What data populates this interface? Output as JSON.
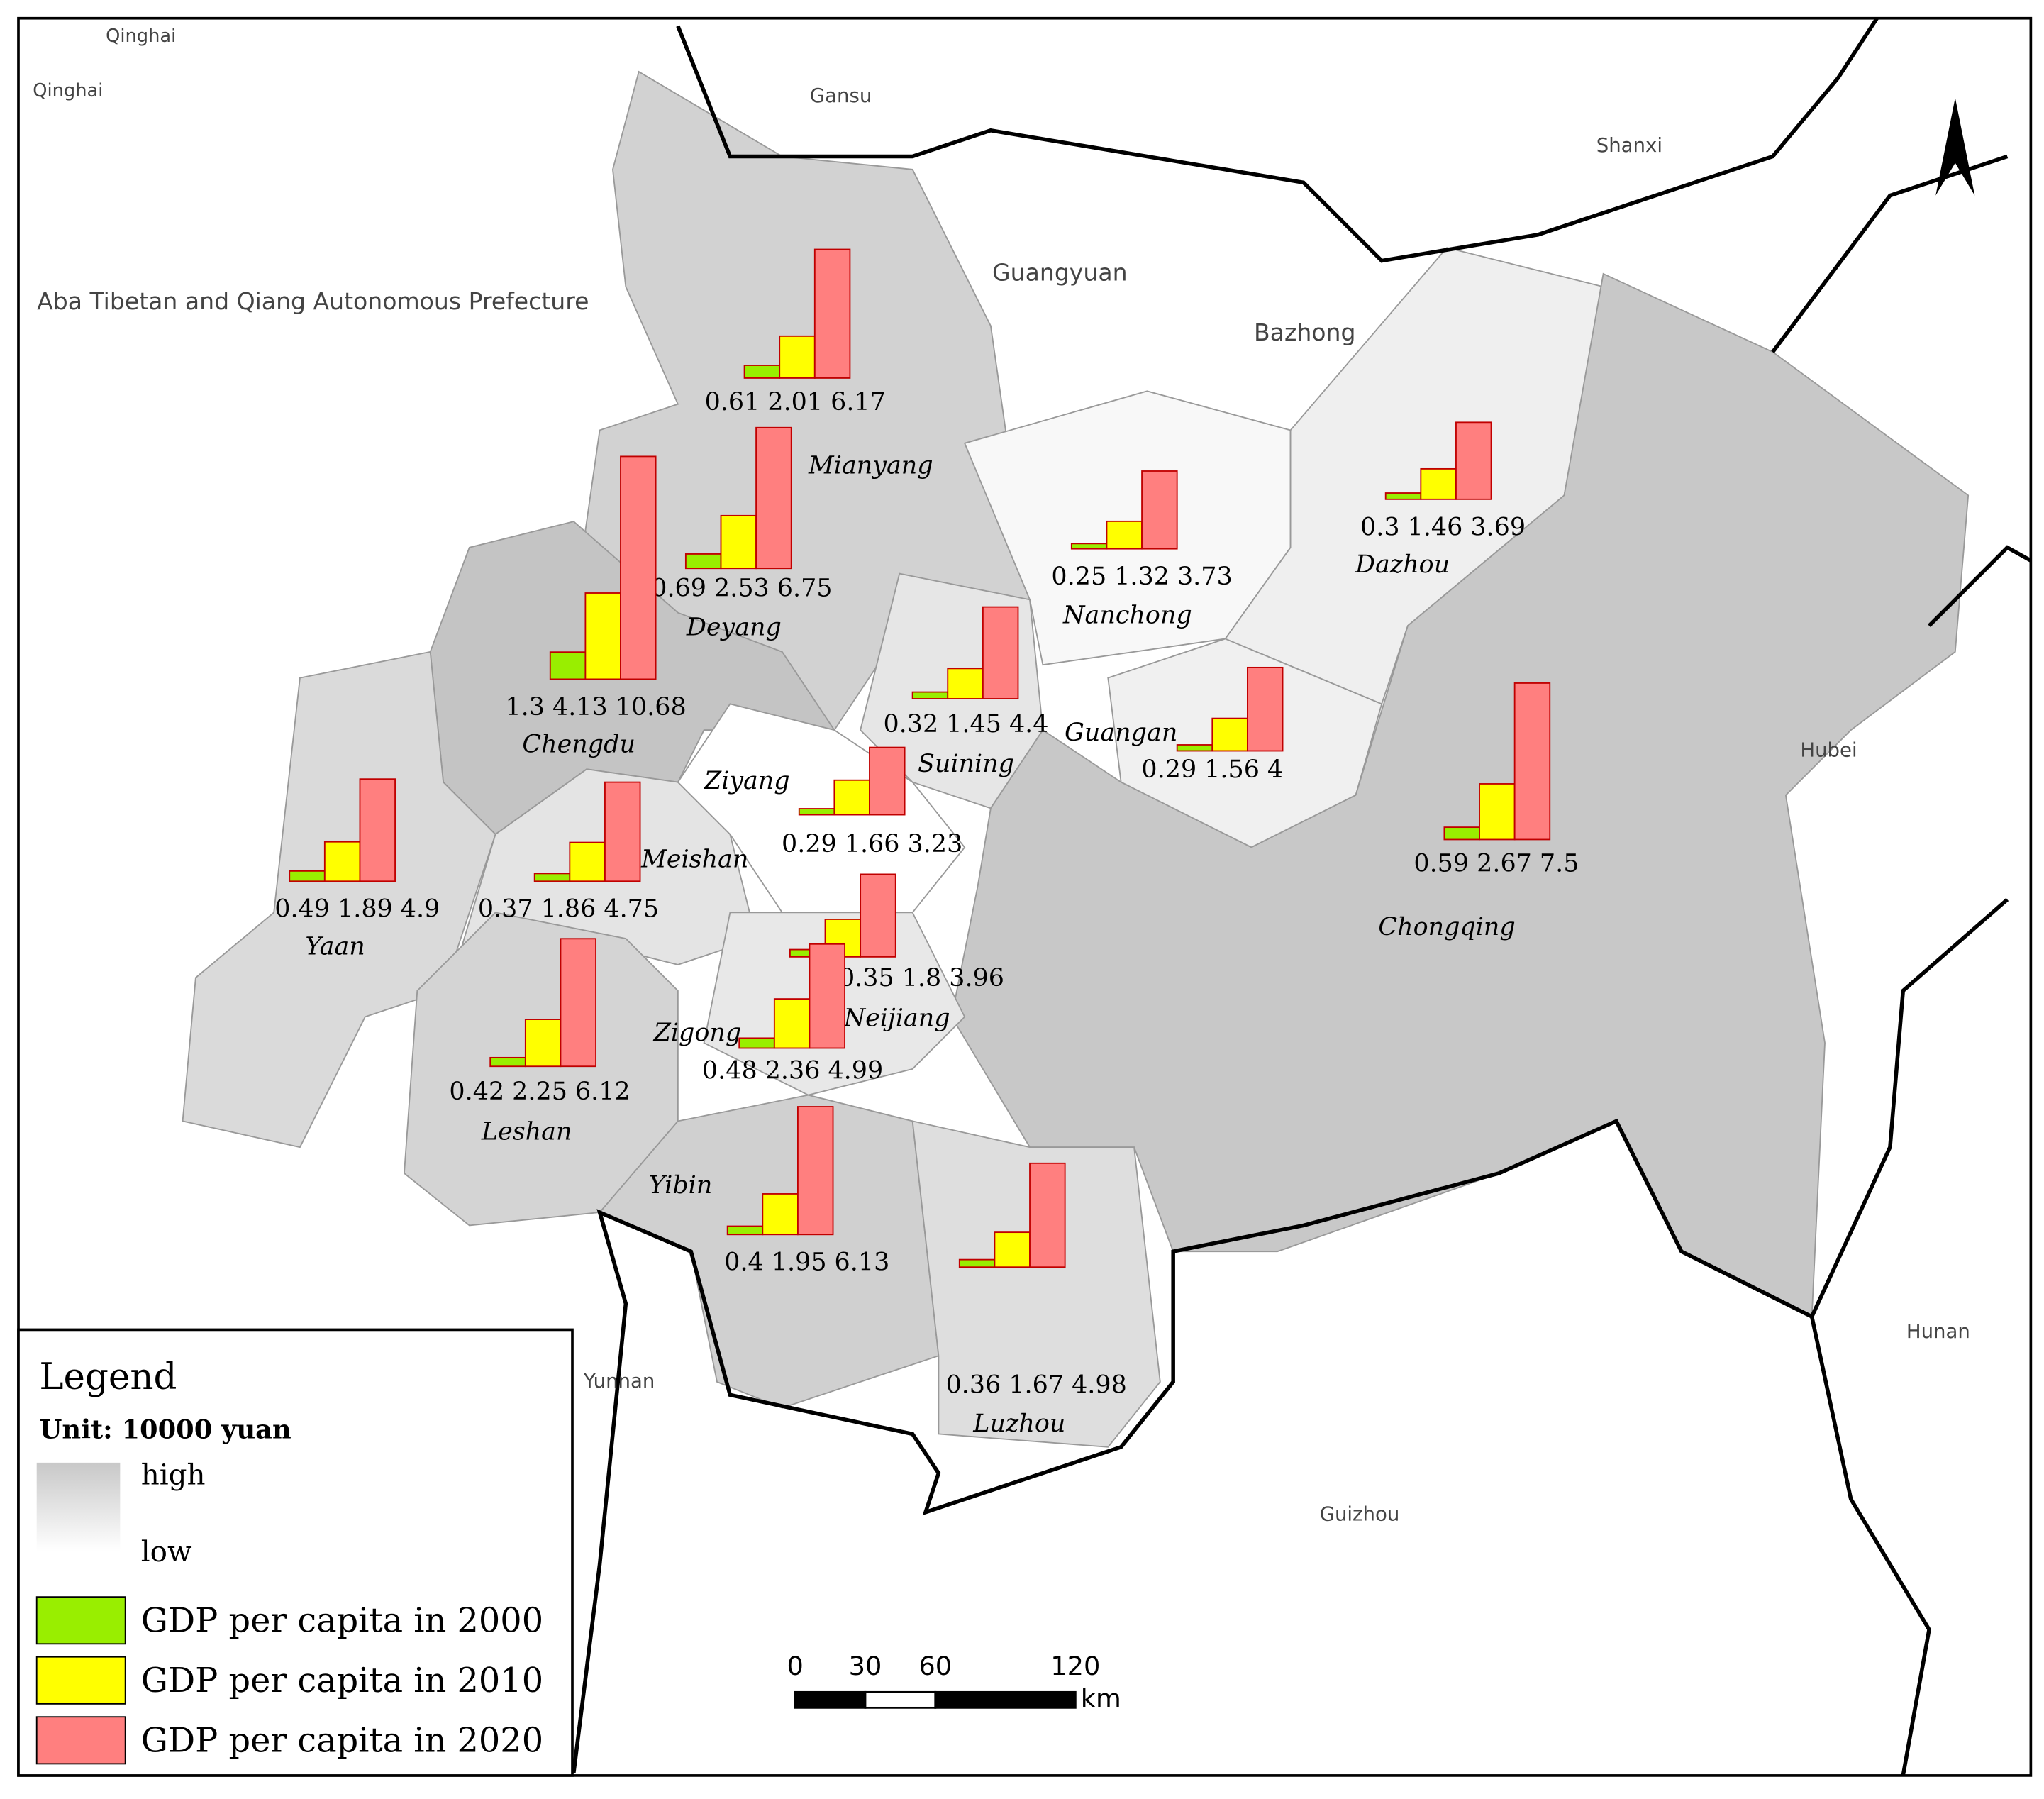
{
  "map": {
    "region_labels": [
      "Qinghai",
      "Qinghai",
      "Gansu",
      "Shanxi",
      "Hubei",
      "Hunan",
      "Guizhou",
      "Yunnan",
      "Aba Tibetan and Qiang Autonomous Prefecture",
      "Guangyuan",
      "Bazhong"
    ],
    "cities": [
      {
        "name": "Mianyang",
        "values": [
          0.61,
          2.01,
          6.17
        ]
      },
      {
        "name": "Deyang",
        "values": [
          0.69,
          2.53,
          6.75
        ]
      },
      {
        "name": "Chengdu",
        "values": [
          1.3,
          4.13,
          10.68
        ]
      },
      {
        "name": "Yaan",
        "values": [
          0.49,
          1.89,
          4.9
        ]
      },
      {
        "name": "Meishan",
        "values": [
          0.37,
          1.86,
          4.75
        ]
      },
      {
        "name": "Leshan",
        "values": [
          0.42,
          2.25,
          6.12
        ]
      },
      {
        "name": "Ziyang",
        "values": [
          0.29,
          1.66,
          3.23
        ]
      },
      {
        "name": "Suining",
        "values": [
          0.32,
          1.45,
          4.4
        ]
      },
      {
        "name": "Nanchong",
        "values": [
          0.25,
          1.32,
          3.73
        ]
      },
      {
        "name": "Guangan",
        "values": [
          0.29,
          1.56,
          4
        ]
      },
      {
        "name": "Dazhou",
        "values": [
          0.3,
          1.46,
          3.69
        ]
      },
      {
        "name": "Chongqing",
        "values": [
          0.59,
          2.67,
          7.5
        ]
      },
      {
        "name": "Neijiang",
        "values": [
          0.35,
          1.8,
          3.96
        ]
      },
      {
        "name": "Zigong",
        "values": [
          0.48,
          2.36,
          4.99
        ]
      },
      {
        "name": "Yibin",
        "values": [
          0.4,
          1.95,
          6.13
        ]
      },
      {
        "name": "Luzhou",
        "values": [
          0.36,
          1.67,
          4.98
        ]
      }
    ],
    "series": [
      {
        "name": "GDP per capita in 2000",
        "color": "#99ee00"
      },
      {
        "name": "GDP per capita in 2010",
        "color": "#ffff00"
      },
      {
        "name": "GDP per capita in 2020",
        "color": "#ff7f7f"
      }
    ],
    "legend": {
      "title": "Legend",
      "unit": "Unit: 10000 yuan",
      "high": "high",
      "low": "low"
    },
    "scale_bar": {
      "ticks": [
        0,
        30,
        60,
        120
      ],
      "unit": "km"
    }
  }
}
